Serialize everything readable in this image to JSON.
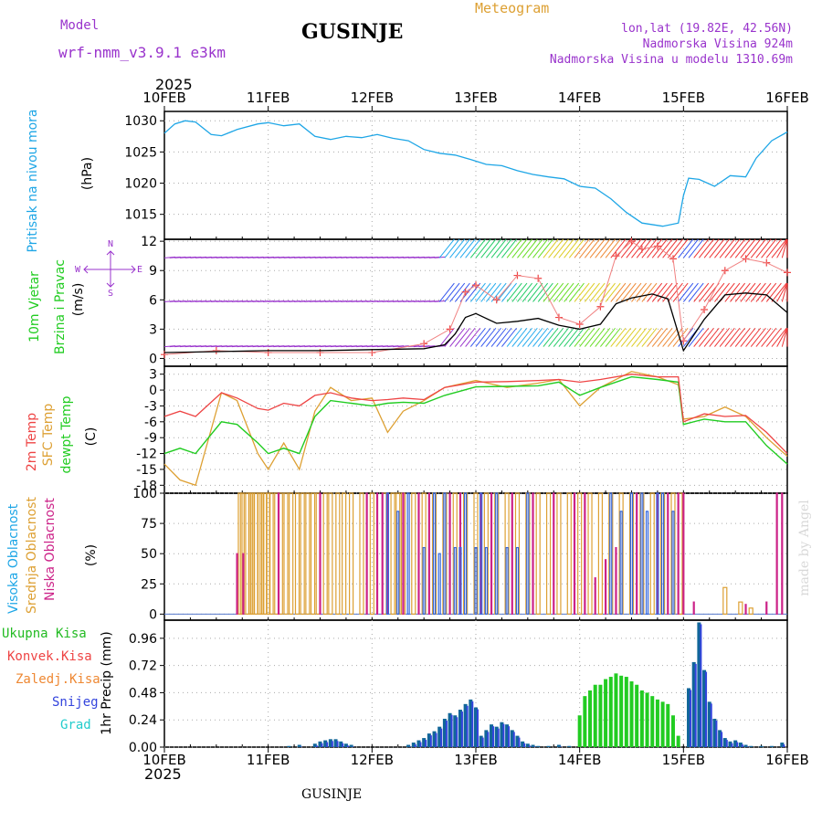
{
  "header": {
    "model_label": "Model",
    "model_name": "wrf-nmm_v3.9.1  e3km",
    "station": "GUSINJE",
    "meteogram": "Meteogram",
    "lonlat": "lon,lat (19.82E, 42.56N)",
    "elev": "Nadmorska Visina 924m",
    "elev_model": "Nadmorska Visina u modelu 1310.69m",
    "footer_station": "GUSINJE",
    "credit": "made by Angel",
    "year_top": "2025",
    "year_bottom": "2025"
  },
  "colors": {
    "pressure": "#1ea6e6",
    "purple": "#9933cc",
    "green": "#22cc22",
    "red": "#ee4444",
    "orange": "#dda033",
    "magenta": "#cc2288",
    "blue": "#3344dd",
    "cyan": "#22bbcc",
    "teal": "#116699",
    "dark_green": "#119933",
    "grid": "#aaaaaa"
  },
  "chart_data": [
    {
      "type": "line",
      "name": "pressure",
      "ylabel_1": "Pritisak na nivou mora",
      "ylabel_2": "(hPa)",
      "x_labels": [
        "10FEB",
        "11FEB",
        "12FEB",
        "13FEB",
        "14FEB",
        "15FEB",
        "16FEB"
      ],
      "x_range": [
        0,
        6
      ],
      "ylim": [
        1011,
        1031.5
      ],
      "yticks": [
        1015,
        1020,
        1025,
        1030
      ],
      "x": [
        0,
        0.1,
        0.2,
        0.3,
        0.45,
        0.55,
        0.7,
        0.9,
        1.0,
        1.15,
        1.3,
        1.45,
        1.6,
        1.75,
        1.9,
        2.05,
        2.2,
        2.35,
        2.5,
        2.65,
        2.8,
        2.95,
        3.1,
        3.25,
        3.4,
        3.55,
        3.7,
        3.85,
        4.0,
        4.15,
        4.3,
        4.45,
        4.6,
        4.8,
        4.95,
        5.0,
        5.05,
        5.15,
        5.3,
        5.45,
        5.6,
        5.7,
        5.85,
        6.0
      ],
      "values": [
        1028,
        1029.5,
        1030,
        1029.8,
        1027.8,
        1027.6,
        1028.6,
        1029.5,
        1029.7,
        1029.2,
        1029.5,
        1027.5,
        1027,
        1027.5,
        1027.3,
        1027.8,
        1027.2,
        1026.8,
        1025.4,
        1024.8,
        1024.5,
        1023.8,
        1023,
        1022.8,
        1022,
        1021.4,
        1021,
        1020.7,
        1019.5,
        1019.2,
        1017.5,
        1015.3,
        1013.6,
        1013.1,
        1013.6,
        1018,
        1020.8,
        1020.6,
        1019.5,
        1021.2,
        1021,
        1024,
        1026.8,
        1028.2
      ]
    },
    {
      "type": "line",
      "name": "wind",
      "ylabel_1": "10m Vjetar",
      "ylabel_2": "Brzina i Pravac",
      "ylabel_3": "(m/s)",
      "compass": {
        "n": "N",
        "s": "S",
        "w": "W",
        "e": "E"
      },
      "ylim": [
        -0.8,
        12.2
      ],
      "yticks": [
        0,
        3,
        6,
        9,
        12
      ],
      "x": [
        0,
        0.5,
        1.0,
        1.5,
        2.0,
        2.5,
        2.7,
        2.8,
        2.9,
        3.0,
        3.2,
        3.4,
        3.6,
        3.8,
        4.0,
        4.2,
        4.35,
        4.5,
        4.7,
        4.85,
        5.0,
        5.2,
        5.4,
        5.6,
        5.8,
        6.0
      ],
      "values": [
        0.6,
        0.7,
        0.8,
        0.8,
        0.9,
        1.0,
        1.4,
        2.5,
        4.2,
        4.6,
        3.6,
        3.8,
        4.1,
        3.4,
        3.0,
        3.5,
        5.6,
        6.2,
        6.6,
        6.1,
        0.8,
        4.0,
        6.5,
        6.7,
        6.5,
        4.7
      ],
      "gust_x": [
        0,
        0.5,
        1.0,
        1.5,
        2.0,
        2.5,
        2.75,
        2.9,
        3.0,
        3.2,
        3.4,
        3.6,
        3.8,
        4.0,
        4.2,
        4.35,
        4.5,
        4.6,
        4.75,
        4.9,
        5.0,
        5.2,
        5.4,
        5.6,
        5.8,
        6.0
      ],
      "gust": [
        0.4,
        0.8,
        0.6,
        0.6,
        0.6,
        1.5,
        3.0,
        6.8,
        7.5,
        6.0,
        8.5,
        8.2,
        4.2,
        3.5,
        5.3,
        10.5,
        12.0,
        11.2,
        11.5,
        10.2,
        1.8,
        5.0,
        9.0,
        10.2,
        9.8,
        8.8
      ],
      "rows": [
        1.2,
        5.8,
        10.3
      ]
    },
    {
      "type": "line",
      "name": "temperature",
      "ylabel_1": "2m Temp",
      "ylabel_2": "SFC Temp",
      "ylabel_3": "dewpt Temp",
      "ylabel_4": "(C)",
      "ylim": [
        -19.5,
        4.5
      ],
      "yticks": [
        3,
        0,
        -3,
        -6,
        -9,
        -12,
        -15,
        -18
      ],
      "x": [
        0,
        0.15,
        0.3,
        0.55,
        0.7,
        0.9,
        1.0,
        1.15,
        1.3,
        1.45,
        1.6,
        1.8,
        2.0,
        2.15,
        2.3,
        2.5,
        2.7,
        3.0,
        3.3,
        3.6,
        3.8,
        4.0,
        4.2,
        4.5,
        4.75,
        4.95,
        5.0,
        5.2,
        5.4,
        5.6,
        5.8,
        6.0
      ],
      "temp_2m": [
        -5,
        -4,
        -5,
        -0.5,
        -1.5,
        -3.5,
        -3.8,
        -2.5,
        -3,
        -1,
        -0.5,
        -1.5,
        -2,
        -1.8,
        -1.5,
        -1.8,
        0.5,
        1.5,
        1.6,
        1.8,
        2,
        1.5,
        2,
        3,
        2.5,
        2.5,
        -6,
        -4.5,
        -5,
        -4.8,
        -8,
        -12
      ],
      "temp_sfc": [
        -14,
        -17,
        -18,
        -0.5,
        -2,
        -12,
        -15,
        -10,
        -15,
        -4,
        0.5,
        -2,
        -1.5,
        -8,
        -4,
        -2,
        0.5,
        1.8,
        0.5,
        1.3,
        2,
        -3,
        0.5,
        3.5,
        2.5,
        1,
        -5.5,
        -5,
        -3.2,
        -5,
        -9,
        -12.5
      ],
      "dewpoint": [
        -12,
        -11,
        -12,
        -6,
        -6.5,
        -10,
        -12,
        -11,
        -12,
        -5,
        -2,
        -2.5,
        -3,
        -2.5,
        -2.3,
        -2.5,
        -1,
        0.6,
        0.7,
        0.8,
        1.5,
        -1,
        0.5,
        2.5,
        2,
        1.5,
        -6.5,
        -5.5,
        -6,
        -6,
        -10.5,
        -14
      ]
    },
    {
      "type": "bar",
      "name": "clouds",
      "ylabel_1": "Visoka Oblacnost",
      "ylabel_2": "Srednja Oblacnost",
      "ylabel_3": "Niska Oblacnost",
      "ylabel_4": "(%)",
      "ylim": [
        -5,
        100
      ],
      "yticks": [
        0,
        25,
        50,
        75,
        100
      ],
      "mid_x": [
        0.73,
        0.75,
        0.8,
        0.83,
        0.85,
        0.88,
        0.92,
        0.94,
        0.97,
        1.0,
        1.03,
        1.08,
        1.12,
        1.17,
        1.22,
        1.28,
        1.33,
        1.38,
        1.43,
        1.48,
        1.55,
        1.6,
        1.67,
        1.73,
        1.8,
        1.9,
        2.0,
        2.12,
        2.2,
        2.25,
        2.3,
        2.4,
        2.5,
        2.6,
        2.7,
        2.8,
        2.9,
        3.0,
        3.1,
        3.2,
        3.3,
        3.4,
        3.5,
        3.6,
        3.7,
        3.8,
        3.9,
        4.0,
        4.1,
        4.2,
        4.3,
        4.4,
        4.5,
        4.6,
        4.7,
        4.8,
        4.9,
        4.97,
        5.4,
        5.55,
        5.65
      ],
      "mid_values": [
        100,
        100,
        100,
        100,
        100,
        100,
        100,
        100,
        100,
        100,
        100,
        100,
        100,
        100,
        100,
        100,
        100,
        100,
        100,
        100,
        100,
        100,
        100,
        100,
        100,
        100,
        100,
        100,
        100,
        100,
        100,
        100,
        100,
        100,
        100,
        100,
        100,
        100,
        100,
        100,
        100,
        100,
        100,
        100,
        100,
        100,
        100,
        100,
        100,
        100,
        100,
        100,
        100,
        100,
        100,
        100,
        100,
        100,
        22,
        10,
        5
      ],
      "low_x": [
        0.7,
        0.76,
        1.1,
        1.5,
        1.95,
        2.05,
        2.1,
        2.15,
        2.3,
        2.45,
        2.55,
        2.75,
        2.85,
        3.05,
        3.15,
        3.35,
        3.55,
        3.75,
        3.95,
        4.05,
        4.15,
        4.25,
        4.35,
        4.55,
        4.75,
        4.85,
        4.95,
        5.0,
        5.1,
        5.6,
        5.8,
        5.9,
        5.95
      ],
      "low_values": [
        50,
        50,
        100,
        100,
        100,
        100,
        100,
        100,
        100,
        100,
        100,
        100,
        100,
        100,
        100,
        100,
        100,
        100,
        100,
        100,
        30,
        45,
        55,
        100,
        100,
        100,
        100,
        100,
        10,
        8,
        10,
        100,
        100
      ],
      "high_x": [
        2.15,
        2.25,
        2.35,
        2.5,
        2.6,
        2.65,
        2.7,
        2.8,
        2.85,
        2.9,
        3.0,
        3.05,
        3.1,
        3.2,
        3.3,
        3.4,
        3.5,
        4.3,
        4.4,
        4.5,
        4.6,
        4.65,
        4.75,
        4.8,
        4.9
      ],
      "high_values": [
        100,
        85,
        100,
        55,
        100,
        50,
        100,
        55,
        55,
        100,
        55,
        100,
        55,
        100,
        55,
        55,
        100,
        100,
        85,
        100,
        100,
        85,
        100,
        100,
        85
      ]
    },
    {
      "type": "bar",
      "name": "precipitation",
      "legend": [
        "Ukupna Kisa",
        "Konvek.Kisa",
        "Zaledj.Kisa",
        "Snijeg",
        "Grad"
      ],
      "ylabel": "1hr Precip (mm)",
      "ylim": [
        0,
        1.12
      ],
      "yticks": [
        0,
        0.24,
        0.48,
        0.72,
        0.96
      ],
      "x_labels_bottom": [
        "10FEB",
        "11FEB",
        "12FEB",
        "13FEB",
        "14FEB",
        "15FEB",
        "16FEB"
      ],
      "x": [
        1.2,
        1.3,
        1.45,
        1.5,
        1.55,
        1.6,
        1.65,
        1.7,
        1.75,
        1.8,
        2.35,
        2.4,
        2.45,
        2.5,
        2.55,
        2.6,
        2.65,
        2.7,
        2.75,
        2.8,
        2.85,
        2.9,
        2.95,
        3.0,
        3.05,
        3.1,
        3.15,
        3.2,
        3.25,
        3.3,
        3.35,
        3.4,
        3.45,
        3.5,
        3.55,
        3.6,
        3.7,
        3.8,
        3.9,
        4.0,
        4.05,
        4.1,
        4.15,
        4.2,
        4.25,
        4.3,
        4.35,
        4.4,
        4.45,
        4.5,
        4.55,
        4.6,
        4.65,
        4.7,
        4.75,
        4.8,
        4.85,
        4.9,
        4.95,
        5.05,
        5.1,
        5.15,
        5.2,
        5.25,
        5.3,
        5.35,
        5.4,
        5.45,
        5.5,
        5.55,
        5.6,
        5.65,
        5.75,
        5.85,
        5.95
      ],
      "values": [
        0.01,
        0.02,
        0.03,
        0.05,
        0.06,
        0.07,
        0.07,
        0.05,
        0.03,
        0.02,
        0.02,
        0.04,
        0.06,
        0.08,
        0.12,
        0.14,
        0.18,
        0.25,
        0.3,
        0.28,
        0.33,
        0.38,
        0.42,
        0.35,
        0.1,
        0.15,
        0.2,
        0.18,
        0.22,
        0.2,
        0.15,
        0.1,
        0.05,
        0.03,
        0.02,
        0.01,
        0.01,
        0.02,
        0.01,
        0.28,
        0.45,
        0.5,
        0.55,
        0.55,
        0.6,
        0.62,
        0.65,
        0.63,
        0.62,
        0.58,
        0.55,
        0.5,
        0.48,
        0.45,
        0.42,
        0.4,
        0.38,
        0.28,
        0.1,
        0.52,
        0.75,
        1.1,
        0.68,
        0.4,
        0.25,
        0.15,
        0.08,
        0.05,
        0.06,
        0.04,
        0.02,
        0.01,
        0.01,
        0.01,
        0.04
      ]
    }
  ]
}
